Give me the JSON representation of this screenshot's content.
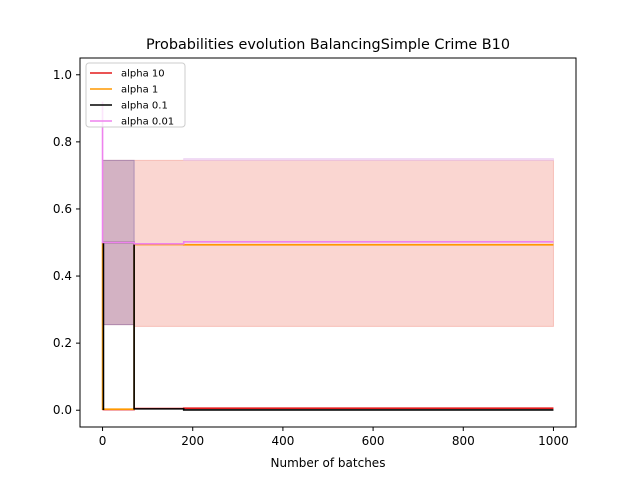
{
  "chart_data": {
    "type": "line",
    "title": "Probabilities evolution BalancingSimple Crime B10",
    "xlabel": "Number of batches",
    "ylabel": "",
    "xlim": [
      -50,
      1050
    ],
    "ylim": [
      -0.05,
      1.05
    ],
    "xticks": [
      0,
      200,
      400,
      600,
      800,
      1000
    ],
    "yticks": [
      0.0,
      0.2,
      0.4,
      0.6,
      0.8,
      1.0
    ],
    "xtick_labels": [
      "0",
      "200",
      "400",
      "600",
      "800",
      "1000"
    ],
    "ytick_labels": [
      "0.0",
      "0.2",
      "0.4",
      "0.6",
      "0.8",
      "1.0"
    ],
    "grid": false,
    "legend_position": "top-left",
    "bands": [
      {
        "name": "alpha 10 band",
        "color": "#f4a39a",
        "opacity": 0.45,
        "points": [
          [
            0,
            0.255,
            0.745
          ],
          [
            70,
            0.255,
            0.745
          ],
          [
            70,
            0.25,
            0.745
          ],
          [
            180,
            0.25,
            0.745
          ],
          [
            180,
            0.25,
            0.745
          ],
          [
            1000,
            0.25,
            0.745
          ]
        ]
      },
      {
        "name": "alpha 0.01 band",
        "color": "#8a6fa8",
        "opacity": 0.35,
        "points": [
          [
            0,
            0.255,
            0.745
          ],
          [
            70,
            0.255,
            0.745
          ]
        ]
      },
      {
        "name": "alpha 0.01 band upper",
        "color": "#e8c4ef",
        "opacity": 0.5,
        "points": [
          [
            180,
            0.745,
            0.75
          ],
          [
            1000,
            0.745,
            0.75
          ]
        ]
      }
    ],
    "series": [
      {
        "name": "alpha 10",
        "color": "#e41a1c",
        "x": [
          0,
          70,
          70,
          180,
          180,
          1000
        ],
        "y": [
          0.002,
          0.002,
          0.005,
          0.005,
          0.006,
          0.006
        ]
      },
      {
        "name": "alpha 1",
        "color": "#ff9900",
        "x": [
          0,
          0,
          70,
          70,
          180,
          180,
          1000
        ],
        "y": [
          0.5,
          0.003,
          0.003,
          0.494,
          0.494,
          0.493,
          0.493
        ]
      },
      {
        "name": "alpha 0.1",
        "color": "#000000",
        "x": [
          0,
          2,
          2,
          70,
          70,
          180,
          180,
          1000
        ],
        "y": [
          0.003,
          0.003,
          0.5,
          0.5,
          0.004,
          0.004,
          0.001,
          0.001
        ]
      },
      {
        "name": "alpha 0.01",
        "color": "#ee82ee",
        "x": [
          0,
          0,
          70,
          70,
          180,
          180,
          1000
        ],
        "y": [
          0.92,
          0.5,
          0.5,
          0.496,
          0.496,
          0.502,
          0.502
        ]
      }
    ]
  }
}
